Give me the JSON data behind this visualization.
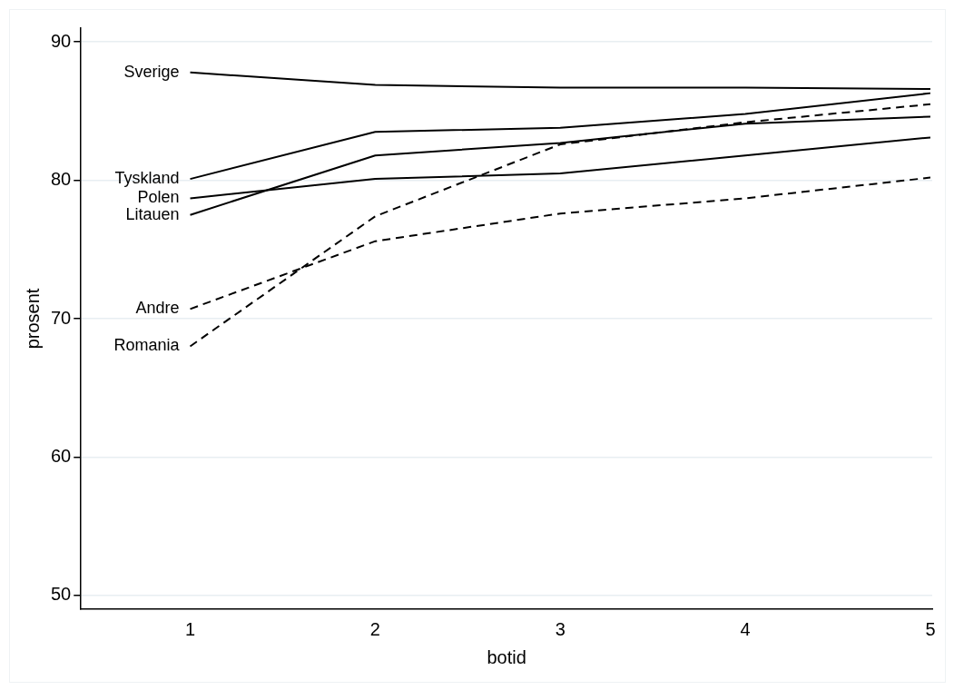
{
  "chart_data": {
    "type": "line",
    "xlabel": "botid",
    "ylabel": "prosent",
    "x": [
      1,
      2,
      3,
      4,
      5
    ],
    "xlim": [
      0.41,
      5.01
    ],
    "xticks": [
      1,
      2,
      3,
      4,
      5
    ],
    "ylim": [
      49,
      91
    ],
    "yticks": [
      50,
      60,
      70,
      80,
      90
    ],
    "grid": "y",
    "legend": false,
    "marker": "none",
    "series": [
      {
        "name": "Sverige",
        "color": "#000000",
        "line_style": "solid",
        "values": [
          87.8,
          86.9,
          86.7,
          86.7,
          86.6
        ]
      },
      {
        "name": "Tyskland",
        "color": "#000000",
        "line_style": "solid",
        "values": [
          80.1,
          83.5,
          83.8,
          84.8,
          86.3
        ]
      },
      {
        "name": "Polen",
        "color": "#000000",
        "line_style": "solid",
        "values": [
          78.7,
          80.1,
          80.5,
          81.8,
          83.1
        ]
      },
      {
        "name": "Litauen",
        "color": "#000000",
        "line_style": "solid",
        "values": [
          77.5,
          81.8,
          82.7,
          84.1,
          84.6
        ]
      },
      {
        "name": "Andre",
        "color": "#000000",
        "line_style": "dashed",
        "values": [
          70.7,
          75.6,
          77.6,
          78.7,
          80.2
        ]
      },
      {
        "name": "Romania",
        "color": "#000000",
        "line_style": "dashed",
        "values": [
          68.0,
          77.4,
          82.6,
          84.2,
          85.5
        ]
      }
    ]
  }
}
